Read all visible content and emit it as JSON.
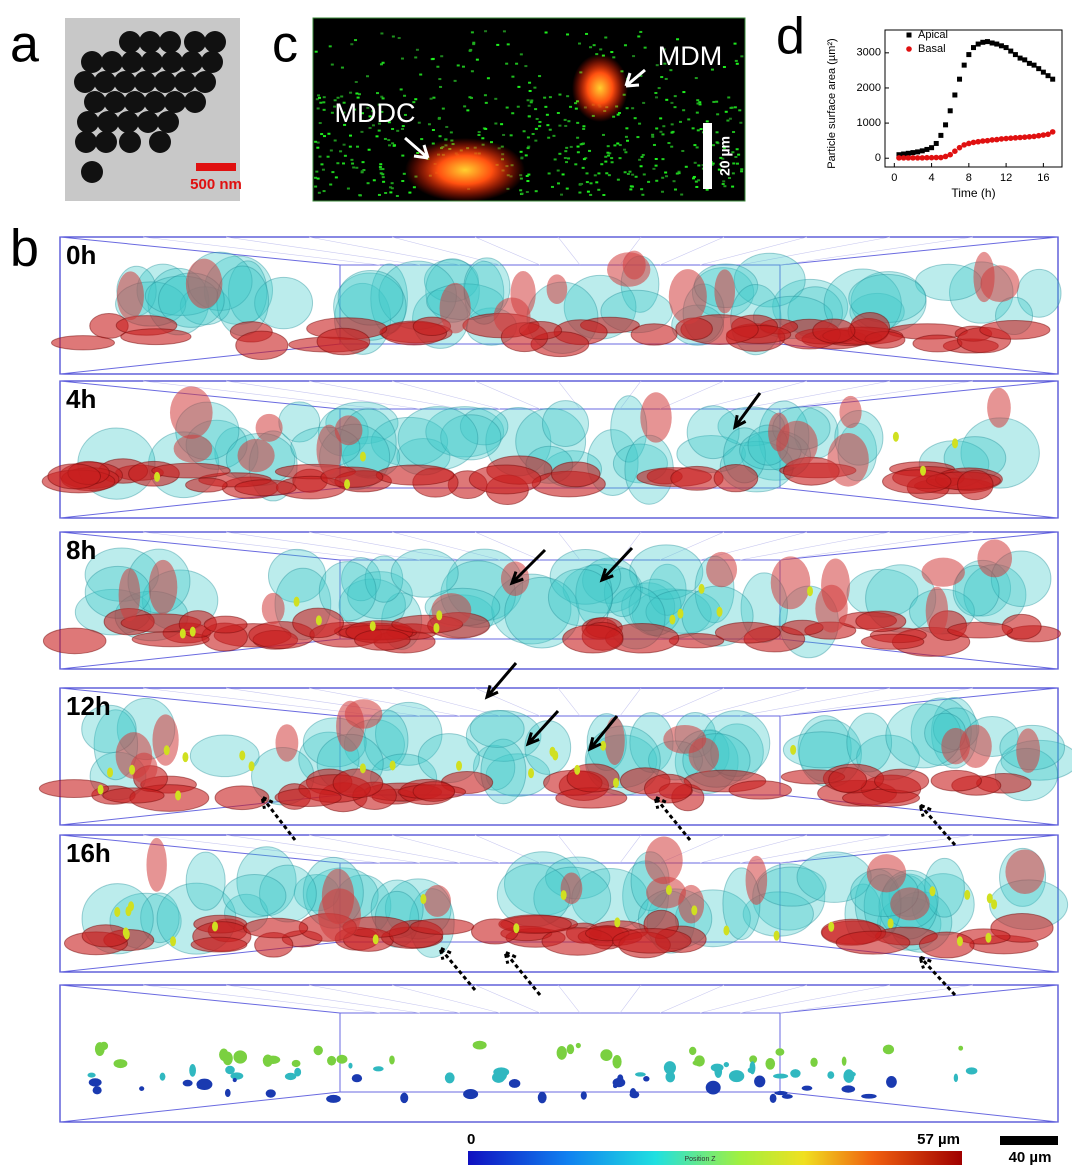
{
  "panels": {
    "a": {
      "label": "a",
      "scale_bar": "500 nm"
    },
    "b": {
      "label": "b",
      "times": [
        "0h",
        "4h",
        "8h",
        "12h",
        "16h"
      ],
      "colorbar": {
        "min": "0",
        "max": "57 µm",
        "title": "Position Z"
      },
      "scale_bar": "40 µm"
    },
    "c": {
      "label": "c",
      "cell_labels": [
        "MDDC",
        "MDM"
      ],
      "scale_bar": "20 µm"
    },
    "d": {
      "label": "d"
    }
  },
  "chart_data": {
    "type": "scatter",
    "xlabel": "Time (h)",
    "ylabel": "Particle surface area (µm²)",
    "x": [
      0.5,
      1,
      1.5,
      2,
      2.5,
      3,
      3.5,
      4,
      4.5,
      5,
      5.5,
      6,
      6.5,
      7,
      7.5,
      8,
      8.5,
      9,
      9.5,
      10,
      10.5,
      11,
      11.5,
      12,
      12.5,
      13,
      13.5,
      14,
      14.5,
      15,
      15.5,
      16,
      16.5,
      17
    ],
    "series": [
      {
        "name": "Apical",
        "color": "#000000",
        "marker": "square",
        "values": [
          100,
          120,
          140,
          160,
          180,
          210,
          250,
          300,
          420,
          650,
          950,
          1350,
          1800,
          2250,
          2650,
          2950,
          3150,
          3250,
          3300,
          3320,
          3280,
          3250,
          3200,
          3150,
          3050,
          2950,
          2850,
          2800,
          2700,
          2650,
          2550,
          2450,
          2350,
          2250
        ]
      },
      {
        "name": "Basal",
        "color": "#e01010",
        "marker": "circle",
        "values": [
          10,
          10,
          10,
          10,
          10,
          10,
          15,
          15,
          20,
          20,
          50,
          100,
          200,
          300,
          380,
          420,
          450,
          470,
          490,
          500,
          520,
          530,
          550,
          560,
          570,
          580,
          590,
          600,
          610,
          620,
          640,
          660,
          680,
          750
        ]
      }
    ],
    "xlim": [
      -1,
      18
    ],
    "xticks": [
      0,
      4,
      8,
      12,
      16
    ],
    "ylim": [
      -250,
      3650
    ],
    "yticks": [
      0,
      1000,
      2000,
      3000
    ],
    "grid": false,
    "legend": "upper left"
  }
}
